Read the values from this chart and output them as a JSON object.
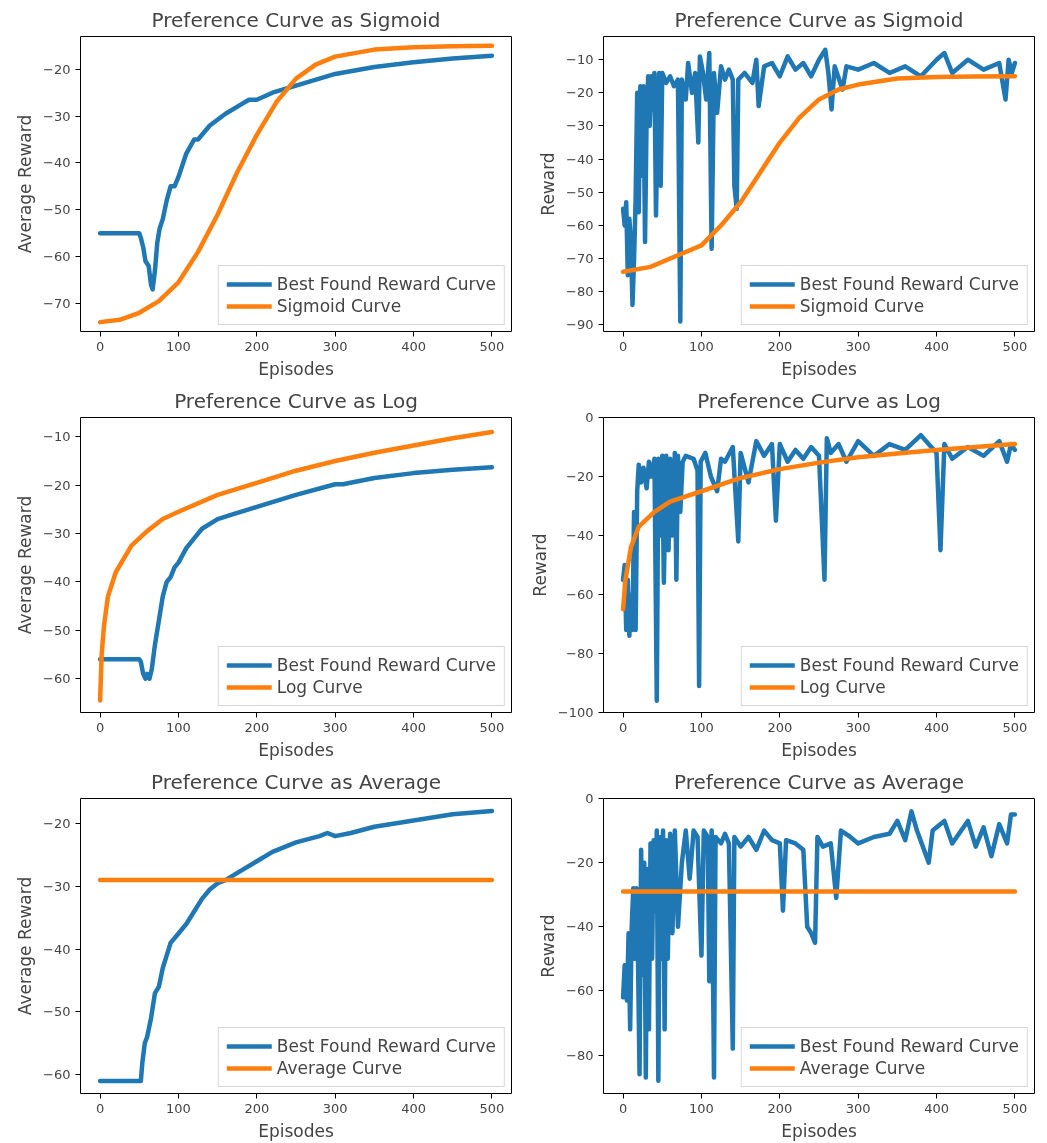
{
  "chart_data": [
    {
      "type": "line",
      "title": "Preference Curve as Sigmoid",
      "xlabel": "Episodes",
      "ylabel": "Average Reward",
      "xlim": [
        -25,
        525
      ],
      "xticks": [
        0,
        100,
        200,
        300,
        400,
        500
      ],
      "ylim": [
        -76,
        -13
      ],
      "yticks": [
        -70,
        -60,
        -50,
        -40,
        -30,
        -20
      ],
      "legend": "bottom right",
      "grid": false,
      "series": [
        {
          "name": "Best Found Reward Curve",
          "color": "#1f77b4",
          "x": [
            0,
            50,
            52,
            55,
            58,
            62,
            65,
            67,
            70,
            73,
            76,
            80,
            85,
            90,
            95,
            100,
            110,
            120,
            125,
            140,
            160,
            180,
            190,
            200,
            220,
            250,
            300,
            350,
            400,
            450,
            500
          ],
          "values": [
            -55,
            -55,
            -56,
            -58,
            -61,
            -62,
            -66,
            -67,
            -63,
            -57,
            -54,
            -52,
            -48,
            -45,
            -45,
            -43,
            -38,
            -35,
            -35,
            -32,
            -29.5,
            -27.5,
            -26.5,
            -26.5,
            -25,
            -23.5,
            -21,
            -19.5,
            -18.5,
            -17.7,
            -17.1
          ]
        },
        {
          "name": "Sigmoid Curve",
          "color": "#ff7f0e",
          "x": [
            0,
            25,
            50,
            75,
            100,
            125,
            150,
            175,
            200,
            225,
            250,
            275,
            300,
            350,
            400,
            450,
            500
          ],
          "values": [
            -74,
            -73.5,
            -72,
            -69.5,
            -65.5,
            -59,
            -51,
            -42,
            -34,
            -27,
            -22,
            -19,
            -17.3,
            -15.8,
            -15.3,
            -15.1,
            -15
          ]
        }
      ]
    },
    {
      "type": "line",
      "title": "Preference Curve as Sigmoid",
      "xlabel": "Episodes",
      "ylabel": "Reward",
      "xlim": [
        -25,
        525
      ],
      "xticks": [
        0,
        100,
        200,
        300,
        400,
        500
      ],
      "ylim": [
        -92,
        -3
      ],
      "yticks": [
        -90,
        -80,
        -70,
        -60,
        -50,
        -40,
        -30,
        -20,
        -10
      ],
      "legend": "bottom right",
      "grid": false,
      "series": [
        {
          "name": "Best Found Reward Curve",
          "color": "#1f77b4",
          "x": [
            0,
            2,
            4,
            6,
            8,
            10,
            12,
            14,
            16,
            18,
            20,
            22,
            24,
            26,
            28,
            30,
            32,
            34,
            36,
            38,
            40,
            42,
            44,
            46,
            48,
            50,
            55,
            60,
            65,
            70,
            73,
            75,
            80,
            83,
            88,
            92,
            96,
            98,
            102,
            106,
            110,
            113,
            116,
            120,
            125,
            130,
            135,
            140,
            142,
            145,
            147,
            155,
            165,
            170,
            173,
            180,
            190,
            200,
            210,
            220,
            230,
            240,
            250,
            258,
            262,
            266,
            270,
            280,
            285,
            300,
            320,
            340,
            360,
            380,
            400,
            410,
            420,
            440,
            460,
            480,
            488,
            492,
            496,
            500
          ],
          "values": [
            -55,
            -60,
            -53,
            -75,
            -58,
            -65,
            -84,
            -70,
            -52,
            -20,
            -56,
            -18,
            -45,
            -18,
            -65,
            -28,
            -15,
            -30,
            -15,
            -25,
            -14,
            -57,
            -28,
            -14,
            -48,
            -14,
            -17,
            -15,
            -18,
            -16,
            -89,
            -16,
            -22,
            -11,
            -20,
            -14,
            -35,
            -9,
            -14,
            -22,
            -8,
            -67,
            -14,
            -26,
            -12,
            -16,
            -13,
            -16,
            -48,
            -55,
            -16,
            -14,
            -17,
            -10,
            -24,
            -12,
            -11,
            -15,
            -9,
            -13,
            -11,
            -15,
            -10,
            -7,
            -14,
            -25,
            -12,
            -19,
            -12,
            -13,
            -11,
            -14,
            -12,
            -15,
            -10,
            -8,
            -14,
            -10,
            -13,
            -11,
            -22,
            -10,
            -14,
            -11
          ]
        },
        {
          "name": "Sigmoid Curve",
          "color": "#ff7f0e",
          "x": [
            0,
            35,
            70,
            100,
            125,
            150,
            175,
            200,
            225,
            250,
            275,
            300,
            350,
            400,
            450,
            500
          ],
          "values": [
            -74,
            -72.5,
            -69,
            -66,
            -60,
            -53,
            -44,
            -35,
            -27.5,
            -22,
            -19,
            -17.5,
            -15.7,
            -15.2,
            -15.1,
            -15
          ]
        }
      ]
    },
    {
      "type": "line",
      "title": "Preference Curve as Log",
      "xlabel": "Episodes",
      "ylabel": "Average Reward",
      "xlim": [
        -25,
        525
      ],
      "xticks": [
        0,
        100,
        200,
        300,
        400,
        500
      ],
      "ylim": [
        -67,
        -6
      ],
      "yticks": [
        -60,
        -50,
        -40,
        -30,
        -20,
        -10
      ],
      "legend": "bottom right",
      "grid": false,
      "series": [
        {
          "name": "Best Found Reward Curve",
          "color": "#1f77b4",
          "x": [
            0,
            50,
            52,
            55,
            58,
            60,
            63,
            66,
            70,
            75,
            80,
            85,
            90,
            95,
            100,
            110,
            120,
            130,
            150,
            170,
            200,
            250,
            300,
            310,
            350,
            400,
            450,
            500
          ],
          "values": [
            -56,
            -56,
            -56.5,
            -59,
            -60,
            -59,
            -60,
            -58,
            -53,
            -48,
            -43,
            -40,
            -39,
            -37,
            -36,
            -33,
            -31,
            -29,
            -27,
            -26,
            -24.5,
            -22,
            -19.8,
            -19.8,
            -18.5,
            -17.5,
            -16.8,
            -16.3
          ]
        },
        {
          "name": "Log Curve",
          "color": "#ff7f0e",
          "x": [
            0,
            2,
            5,
            10,
            20,
            40,
            60,
            80,
            100,
            150,
            200,
            250,
            300,
            350,
            400,
            450,
            500
          ],
          "values": [
            -64.5,
            -55,
            -49,
            -43,
            -38,
            -32.5,
            -29.5,
            -27,
            -25.5,
            -22,
            -19.5,
            -17,
            -15,
            -13.3,
            -11.8,
            -10.3,
            -9
          ]
        }
      ]
    },
    {
      "type": "line",
      "title": "Preference Curve as Log",
      "xlabel": "Episodes",
      "ylabel": "Reward",
      "xlim": [
        -25,
        525
      ],
      "xticks": [
        0,
        100,
        200,
        300,
        400,
        500
      ],
      "ylim": [
        -100,
        0
      ],
      "yticks": [
        -100,
        -80,
        -60,
        -40,
        -20,
        0
      ],
      "legend": "bottom right",
      "grid": false,
      "series": [
        {
          "name": "Best Found Reward Curve",
          "color": "#1f77b4",
          "x": [
            0,
            2,
            4,
            6,
            8,
            10,
            12,
            14,
            16,
            18,
            20,
            23,
            26,
            30,
            33,
            36,
            40,
            43,
            45,
            48,
            50,
            52,
            55,
            58,
            60,
            63,
            66,
            68,
            70,
            73,
            76,
            80,
            90,
            95,
            97,
            99,
            105,
            112,
            120,
            125,
            130,
            140,
            147,
            150,
            160,
            170,
            180,
            190,
            195,
            200,
            210,
            220,
            230,
            240,
            250,
            257,
            260,
            265,
            275,
            285,
            300,
            320,
            340,
            360,
            380,
            400,
            405,
            410,
            420,
            440,
            460,
            480,
            490,
            495,
            500
          ],
          "values": [
            -55,
            -50,
            -72,
            -55,
            -74,
            -60,
            -72,
            -32,
            -72,
            -25,
            -16,
            -22,
            -17,
            -24,
            -15,
            -20,
            -14,
            -96,
            -14,
            -40,
            -13,
            -56,
            -13,
            -45,
            -14,
            -40,
            -12,
            -55,
            -13,
            -32,
            -15,
            -13,
            -14,
            -18,
            -91,
            -15,
            -12,
            -20,
            -25,
            -14,
            -15,
            -10,
            -42,
            -12,
            -22,
            -8,
            -13,
            -9,
            -35,
            -9,
            -15,
            -11,
            -14,
            -10,
            -13,
            -55,
            -7,
            -12,
            -9,
            -15,
            -8,
            -13,
            -9,
            -11,
            -6,
            -12,
            -45,
            -9,
            -14,
            -10,
            -13,
            -8,
            -15,
            -9,
            -11
          ]
        },
        {
          "name": "Log Curve",
          "color": "#ff7f0e",
          "x": [
            0,
            3,
            10,
            20,
            40,
            60,
            100,
            150,
            200,
            250,
            300,
            350,
            400,
            450,
            500
          ],
          "values": [
            -65,
            -55,
            -44,
            -37,
            -32,
            -28.5,
            -25,
            -20.5,
            -17.5,
            -15.3,
            -13.5,
            -12.2,
            -11,
            -10,
            -9
          ]
        }
      ]
    },
    {
      "type": "line",
      "title": "Preference Curve as Average",
      "xlabel": "Episodes",
      "ylabel": "Average Reward",
      "xlim": [
        -25,
        525
      ],
      "xticks": [
        0,
        100,
        200,
        300,
        400,
        500
      ],
      "ylim": [
        -63,
        -16
      ],
      "yticks": [
        -60,
        -50,
        -40,
        -30,
        -20
      ],
      "legend": "bottom right",
      "grid": false,
      "series": [
        {
          "name": "Best Found Reward Curve",
          "color": "#1f77b4",
          "x": [
            0,
            52,
            54,
            57,
            60,
            65,
            70,
            75,
            80,
            85,
            90,
            100,
            110,
            120,
            130,
            140,
            150,
            160,
            180,
            200,
            220,
            250,
            280,
            290,
            300,
            320,
            350,
            400,
            450,
            500
          ],
          "values": [
            -61,
            -61,
            -58,
            -55,
            -54,
            -51,
            -47,
            -46,
            -43,
            -41,
            -39,
            -37.5,
            -36,
            -34,
            -32,
            -30.5,
            -29.5,
            -29,
            -27.5,
            -26,
            -24.5,
            -23,
            -22,
            -21.5,
            -22,
            -21.5,
            -20.5,
            -19.5,
            -18.5,
            -18
          ]
        },
        {
          "name": "Average Curve",
          "color": "#ff7f0e",
          "x": [
            0,
            500
          ],
          "values": [
            -29,
            -29
          ]
        }
      ]
    },
    {
      "type": "line",
      "title": "Preference Curve as Average",
      "xlabel": "Episodes",
      "ylabel": "Reward",
      "xlim": [
        -25,
        525
      ],
      "xticks": [
        0,
        100,
        200,
        300,
        400,
        500
      ],
      "ylim": [
        -92,
        0
      ],
      "yticks": [
        -80,
        -60,
        -40,
        -20,
        0
      ],
      "legend": "bottom right",
      "grid": false,
      "series": [
        {
          "name": "Best Found Reward Curve",
          "color": "#1f77b4",
          "x": [
            0,
            2,
            5,
            7,
            9,
            11,
            13,
            15,
            17,
            19,
            21,
            23,
            25,
            27,
            29,
            31,
            33,
            35,
            37,
            39,
            41,
            43,
            45,
            47,
            49,
            51,
            53,
            55,
            57,
            60,
            63,
            66,
            70,
            75,
            80,
            85,
            90,
            95,
            100,
            103,
            108,
            110,
            113,
            116,
            118,
            125,
            130,
            135,
            140,
            142,
            150,
            160,
            170,
            180,
            190,
            200,
            204,
            208,
            220,
            230,
            235,
            240,
            245,
            248,
            255,
            265,
            272,
            278,
            290,
            300,
            320,
            340,
            350,
            360,
            368,
            375,
            390,
            395,
            410,
            420,
            440,
            450,
            460,
            470,
            480,
            490,
            495,
            500
          ],
          "values": [
            -62,
            -52,
            -63,
            -42,
            -72,
            -40,
            -28,
            -50,
            -28,
            -50,
            -86,
            -16,
            -55,
            -20,
            -87,
            -22,
            -72,
            -14,
            -50,
            -13,
            -35,
            -10,
            -88,
            -12,
            -50,
            -10,
            -72,
            -13,
            -50,
            -11,
            -42,
            -10,
            -40,
            -20,
            -10,
            -25,
            -10,
            -12,
            -49,
            -10,
            -12,
            -57,
            -10,
            -87,
            -12,
            -14,
            -11,
            -14,
            -78,
            -12,
            -15,
            -12,
            -16,
            -10,
            -13,
            -14,
            -35,
            -13,
            -14,
            -16,
            -40,
            -42,
            -45,
            -12,
            -15,
            -14,
            -31,
            -10,
            -12,
            -14,
            -12,
            -11,
            -7,
            -13,
            -4,
            -10,
            -20,
            -10,
            -7,
            -14,
            -7,
            -15,
            -9,
            -18,
            -8,
            -14,
            -5,
            -5
          ]
        },
        {
          "name": "Average Curve",
          "color": "#ff7f0e",
          "x": [
            0,
            500
          ],
          "values": [
            -29,
            -29
          ]
        }
      ]
    }
  ]
}
